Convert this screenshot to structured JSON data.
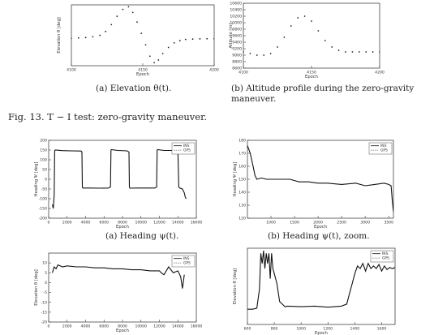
{
  "captions": {
    "a_top": "(a) Elevation θ(t).",
    "b_top": "(b) Altitude profile during the zero-gravity maneuver.",
    "fig13": "Fig. 13. T − I test: zero-gravity maneuver.",
    "a_mid": "(a) Heading ψ(t).",
    "b_mid": "(b) Heading ψ(t), zoom."
  },
  "chart_data": [
    {
      "id": "c1",
      "type": "scatter",
      "xlabel": "Epoch",
      "ylabel": "Elevation θ [deg]",
      "xlim": [
        4100,
        4200
      ],
      "ylim": [
        -70,
        90
      ],
      "xticks": [
        4100,
        4150,
        4200
      ],
      "xticklabels": [
        "4100",
        "4150",
        "4200"
      ],
      "yticks": [],
      "yticklabels": [],
      "series": [
        {
          "style": "dots",
          "x": [
            4100,
            4105,
            4110,
            4115,
            4120,
            4124,
            4128,
            4132,
            4136,
            4140,
            4143,
            4146,
            4149,
            4152,
            4155,
            4158,
            4161,
            4164,
            4168,
            4172,
            4176,
            4180,
            4185,
            4190,
            4195,
            4200
          ],
          "y": [
            2,
            3,
            4,
            6,
            10,
            20,
            38,
            60,
            78,
            85,
            70,
            45,
            15,
            -15,
            -45,
            -62,
            -55,
            -38,
            -22,
            -10,
            -4,
            -1,
            0,
            0.5,
            1,
            1
          ]
        }
      ]
    },
    {
      "id": "c2",
      "type": "scatter",
      "xlabel": "Epoch",
      "ylabel": "Altitude [m]",
      "xlim": [
        4100,
        4200
      ],
      "ylim": [
        8600,
        10600
      ],
      "xticks": [
        4100,
        4150,
        4200
      ],
      "xticklabels": [
        "4100",
        "4150",
        "4200"
      ],
      "yticks": [
        8600,
        8800,
        9000,
        9200,
        9400,
        9600,
        9800,
        10000,
        10200,
        10400,
        10600
      ],
      "yticklabels": [
        "8600",
        "8800",
        "9000",
        "9200",
        "9400",
        "9600",
        "9800",
        "10000",
        "10200",
        "10400",
        "10600"
      ],
      "series": [
        {
          "style": "dots",
          "x": [
            4100,
            4105,
            4110,
            4115,
            4120,
            4125,
            4130,
            4135,
            4140,
            4145,
            4150,
            4155,
            4160,
            4165,
            4170,
            4175,
            4180,
            4185,
            4190,
            4195,
            4200
          ],
          "y": [
            9100,
            9050,
            9000,
            9000,
            9050,
            9250,
            9550,
            9900,
            10150,
            10200,
            10050,
            9750,
            9450,
            9250,
            9150,
            9100,
            9100,
            9100,
            9100,
            9100,
            9100
          ]
        }
      ]
    },
    {
      "id": "c3",
      "type": "line",
      "xlabel": "Epoch",
      "ylabel": "Heading Ψ [deg]",
      "xlim": [
        0,
        16000
      ],
      "ylim": [
        -200,
        200
      ],
      "xticks": [
        0,
        2000,
        4000,
        6000,
        8000,
        10000,
        12000,
        14000,
        16000
      ],
      "xticklabels": [
        "0",
        "2000",
        "4000",
        "6000",
        "8000",
        "10000",
        "12000",
        "14000",
        "16000"
      ],
      "yticks": [
        -200,
        -150,
        -100,
        -50,
        0,
        50,
        100,
        150,
        200
      ],
      "yticklabels": [
        "-200",
        "-150",
        "-100",
        "-50",
        "0",
        "50",
        "100",
        "150",
        "200"
      ],
      "legend": [
        "INS",
        "GPS"
      ],
      "series": [
        {
          "style": "line",
          "x": [
            400,
            500,
            600,
            650,
            700,
            1500,
            2500,
            3500,
            3600,
            3650,
            3700,
            4500,
            5500,
            6500,
            6700,
            6750,
            6800,
            7500,
            8500,
            8700,
            8750,
            8800,
            9500,
            10500,
            11500,
            11700,
            11750,
            11800,
            12500,
            13500,
            14000,
            14100,
            14200,
            14500,
            14700,
            14800,
            14900
          ],
          "y": [
            -130,
            -150,
            -80,
            145,
            150,
            147,
            146,
            145,
            140,
            -40,
            -45,
            -45,
            -46,
            -45,
            -40,
            150,
            152,
            148,
            146,
            140,
            -40,
            -46,
            -45,
            -45,
            -45,
            -40,
            150,
            152,
            148,
            148,
            145,
            -40,
            -45,
            -50,
            -70,
            -90,
            -100
          ]
        }
      ]
    },
    {
      "id": "c4",
      "type": "line",
      "xlabel": "Epoch",
      "ylabel": "Heading Ψ [deg]",
      "xlim": [
        500,
        3600
      ],
      "ylim": [
        120,
        180
      ],
      "xticks": [
        1000,
        1500,
        2000,
        2500,
        3000,
        3500
      ],
      "xticklabels": [
        "1000",
        "1500",
        "2000",
        "2500",
        "3000",
        "3500"
      ],
      "yticks": [
        120,
        130,
        140,
        150,
        160,
        170,
        180
      ],
      "yticklabels": [
        "120",
        "130",
        "140",
        "150",
        "160",
        "170",
        "180"
      ],
      "legend": [
        "INS",
        "GPS"
      ],
      "series": [
        {
          "style": "line",
          "x": [
            500,
            560,
            620,
            660,
            700,
            800,
            900,
            1100,
            1400,
            1500,
            1600,
            1800,
            2000,
            2200,
            2500,
            2800,
            3000,
            3200,
            3400,
            3500,
            3550,
            3580,
            3600
          ],
          "y": [
            176,
            170,
            160,
            153,
            150,
            151,
            150,
            150,
            150,
            149,
            148,
            148,
            147,
            147,
            146,
            147,
            145,
            146,
            147,
            146,
            145,
            132,
            125
          ]
        }
      ]
    },
    {
      "id": "c5",
      "type": "line",
      "xlabel": "Epoch",
      "ylabel": "Elevation θ [deg]",
      "xlim": [
        0,
        16000
      ],
      "ylim": [
        -20,
        15
      ],
      "xticks": [
        0,
        2000,
        4000,
        6000,
        8000,
        10000,
        12000,
        14000,
        16000
      ],
      "xticklabels": [
        "0",
        "2000",
        "4000",
        "6000",
        "8000",
        "10000",
        "12000",
        "14000",
        "16000"
      ],
      "yticks": [
        -20,
        -15,
        -10,
        -5,
        0,
        5,
        10
      ],
      "yticklabels": [
        "-20",
        "-15",
        "-10",
        "-5",
        "0",
        "5",
        "10"
      ],
      "legend": [
        "INS",
        "GPS"
      ],
      "series": [
        {
          "style": "line",
          "x": [
            400,
            600,
            800,
            1000,
            1500,
            2000,
            3000,
            4000,
            5000,
            6000,
            7000,
            8000,
            9000,
            10000,
            11000,
            12000,
            12200,
            12500,
            13000,
            13500,
            14000,
            14300,
            14500,
            14700
          ],
          "y": [
            5,
            8,
            7,
            9,
            8,
            8.5,
            8,
            8,
            7.5,
            7.5,
            7,
            7,
            6.5,
            6.5,
            6,
            6,
            5,
            4,
            8,
            5,
            6,
            3,
            -3,
            4
          ]
        }
      ]
    },
    {
      "id": "c6",
      "type": "line",
      "xlabel": "Epoch",
      "ylabel": "Elevation θ [deg]",
      "xlim": [
        600,
        1700
      ],
      "ylim": [
        -5,
        10
      ],
      "xticks": [
        600,
        800,
        1000,
        1200,
        1400,
        1600
      ],
      "xticklabels": [
        "600",
        "800",
        "1000",
        "1200",
        "1400",
        "1600"
      ],
      "yticks": [],
      "yticklabels": [],
      "legend": [
        "INS",
        "GPS"
      ],
      "series": [
        {
          "style": "line",
          "x": [
            600,
            640,
            670,
            690,
            700,
            710,
            720,
            730,
            740,
            750,
            760,
            770,
            780,
            790,
            800,
            820,
            840,
            860,
            880,
            900,
            1000,
            1100,
            1200,
            1300,
            1340,
            1360,
            1380,
            1400,
            1420,
            1440,
            1460,
            1480,
            1500,
            1520,
            1540,
            1560,
            1580,
            1600,
            1620,
            1640,
            1660,
            1680,
            1700
          ],
          "y": [
            -2,
            -2,
            -1.8,
            2,
            9,
            7,
            9.5,
            6,
            9,
            7,
            9,
            4,
            9,
            6,
            5,
            3,
            -0.5,
            -1,
            -1.5,
            -1.4,
            -1.5,
            -1.4,
            -1.6,
            -1.4,
            -1,
            1,
            3,
            5,
            6.5,
            6,
            7,
            5.5,
            7,
            6,
            6.5,
            6,
            6.8,
            5.5,
            6.5,
            5.8,
            6.2,
            6.0,
            6.2
          ]
        }
      ]
    }
  ]
}
